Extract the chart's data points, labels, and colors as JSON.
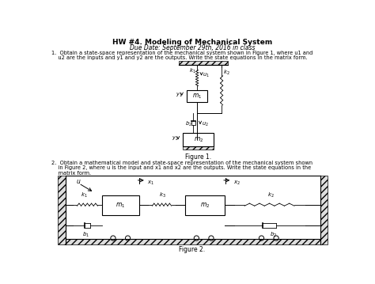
{
  "title": "HW #4. Modeling of Mechanical System",
  "due_date": "Due Date: September 29th, 2016 in class",
  "p1_line1": "1.  Obtain a state-space representation of the mechanical system shown in Figure 1, where u1 and",
  "p1_line2": "    u2 are the inputs and y1 and y2 are the outputs. Write the state equations in the matrix form.",
  "p2_line1": "2.  Obtain a mathematical model and state-space representation of the mechanical system shown",
  "p2_line2": "    in Figure 2, where u is the input and x1 and x2 are the outputs. Write the state equations in the",
  "p2_line3": "    matrix form.",
  "figure1_caption": "Figure 1.",
  "figure2_caption": "Figure 2.",
  "bg_color": "#ffffff",
  "text_color": "#000000"
}
